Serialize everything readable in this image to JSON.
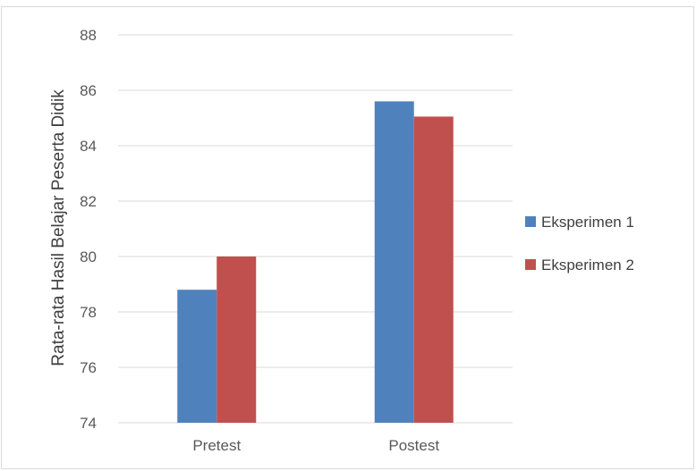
{
  "chart_data": {
    "type": "bar",
    "title": "",
    "xlabel": "",
    "ylabel": "Rata-rata Hasil Belajar Peserta Didik",
    "categories": [
      "Pretest",
      "Postest"
    ],
    "series": [
      {
        "name": "Eksperimen 1",
        "values": [
          78.8,
          85.6
        ],
        "color": "#4f81bd"
      },
      {
        "name": "Eksperimen 2",
        "values": [
          80.0,
          85.05
        ],
        "color": "#c0504d"
      }
    ],
    "ylim": [
      74,
      88
    ],
    "yticks": [
      "74",
      "76",
      "78",
      "80",
      "82",
      "84",
      "86",
      "88"
    ],
    "grid": true,
    "legend_position": "right"
  }
}
